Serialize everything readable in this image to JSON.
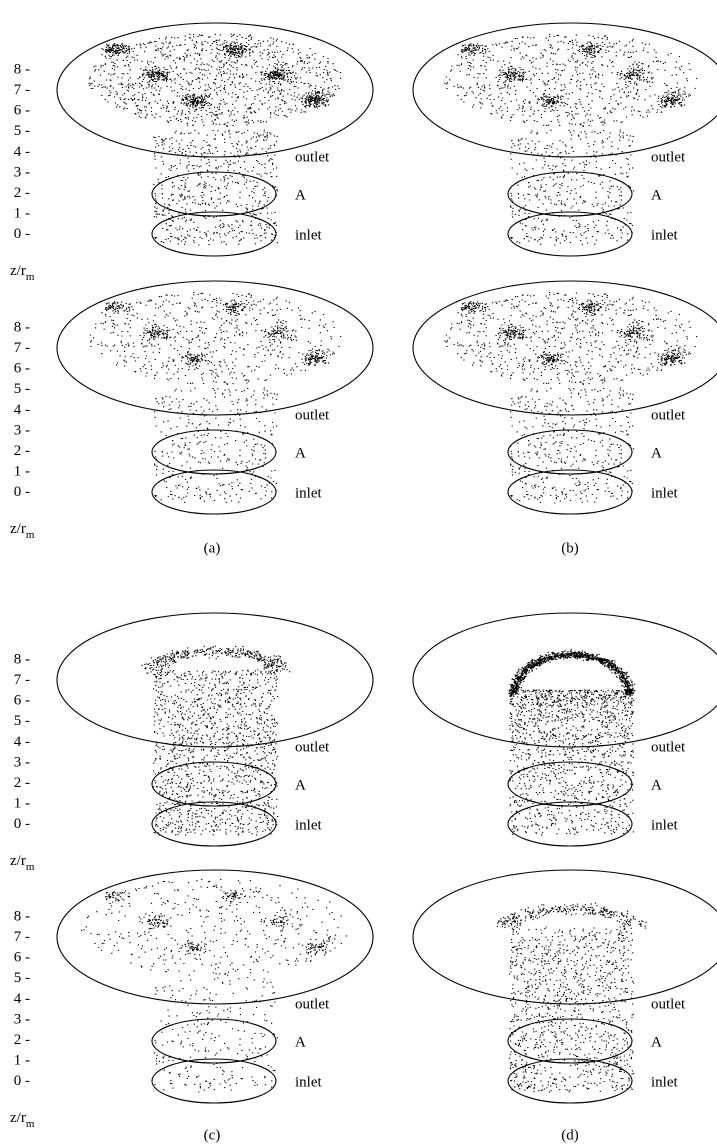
{
  "figure": {
    "y_axis": {
      "ticks": [
        "8 -",
        "7 -",
        "6 -",
        "5 -",
        "4 -",
        "3 -",
        "2 -",
        "1 -",
        "0 -"
      ],
      "label": "z/r",
      "label_subscript": "m"
    },
    "ring_labels": [
      "outlet",
      "A",
      "inlet"
    ],
    "panels": [
      {
        "caption": "(a)"
      },
      {
        "caption": "(b)"
      },
      {
        "caption": "(c)"
      },
      {
        "caption": "(d)"
      }
    ]
  }
}
